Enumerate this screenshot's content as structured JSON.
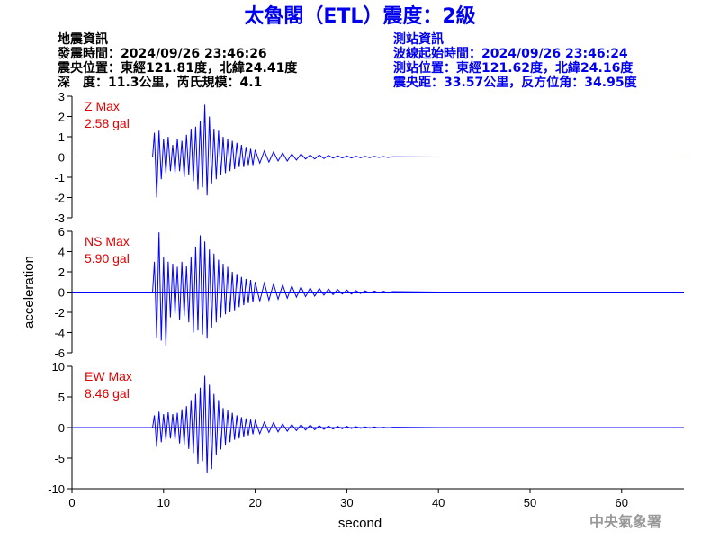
{
  "header": {
    "title": "太魯閣（ETL）震度：2級",
    "left": [
      "地震資訊",
      "發震時間：2024/09/26 23:46:26",
      "震央位置：東經121.81度，北緯24.41度",
      "深　度：11.3公里，芮氏規模：4.1"
    ],
    "right": [
      "測站資訊",
      "波線起始時間：2024/09/26 23:46:24",
      "測站位置：東經121.62度，北緯24.16度",
      "震央距：33.57公里，反方位角：34.95度"
    ]
  },
  "footer": "中央氣象署",
  "chart_data": [
    {
      "type": "line",
      "label": "Z Max",
      "max_label": "2.58 gal",
      "color": "#0000ff",
      "label_color": "#e00000",
      "xlim": [
        0,
        66.8
      ],
      "ylim": [
        -3,
        3
      ],
      "yticks": [
        3,
        2,
        1,
        0,
        -1,
        -2,
        -3
      ],
      "x": [
        0,
        8.8,
        9,
        9.25,
        9.5,
        9.75,
        10,
        10.25,
        10.5,
        10.75,
        11,
        11.25,
        11.5,
        11.75,
        12,
        12.25,
        12.5,
        12.75,
        13,
        13.25,
        13.5,
        13.75,
        14,
        14.25,
        14.5,
        14.75,
        15,
        15.25,
        15.5,
        15.75,
        16,
        16.25,
        16.5,
        16.75,
        17,
        17.25,
        17.5,
        17.75,
        18,
        18.25,
        18.5,
        18.75,
        19,
        19.25,
        19.5,
        19.75,
        20,
        20.5,
        21,
        21.5,
        22,
        22.5,
        23,
        23.5,
        24,
        24.5,
        25,
        25.5,
        26,
        26.5,
        27,
        27.5,
        28,
        28.5,
        29,
        29.5,
        30,
        30.5,
        31,
        31.5,
        32,
        32.5,
        33,
        33.5,
        34,
        34.5,
        35,
        40,
        66.8
      ],
      "values": [
        0,
        0,
        1.2,
        -2.0,
        1.3,
        -1.1,
        0.9,
        -0.8,
        1.0,
        -0.7,
        0.6,
        -0.8,
        0.9,
        -0.7,
        0.8,
        -1.0,
        1.1,
        -0.9,
        1.4,
        -1.2,
        1.5,
        -1.6,
        1.8,
        -1.5,
        2.58,
        -1.9,
        2.0,
        -1.3,
        1.4,
        -1.1,
        1.3,
        -0.9,
        1.0,
        -0.8,
        0.9,
        -0.7,
        0.8,
        -0.6,
        0.7,
        -0.5,
        0.6,
        -0.5,
        0.5,
        -0.4,
        0.4,
        -0.4,
        0.35,
        -0.3,
        0.3,
        -0.25,
        0.25,
        -0.2,
        0.2,
        -0.2,
        0.15,
        -0.15,
        0.15,
        -0.1,
        0.1,
        -0.1,
        0.1,
        -0.08,
        0.08,
        -0.06,
        0.06,
        -0.05,
        0.05,
        -0.05,
        0.04,
        -0.04,
        0.03,
        -0.03,
        0.03,
        -0.02,
        0.02,
        -0.02,
        0.01,
        0,
        0
      ]
    },
    {
      "type": "line",
      "label": "NS Max",
      "max_label": "5.90 gal",
      "color": "#0000ff",
      "label_color": "#e00000",
      "ylabel": "acceleration",
      "xlim": [
        0,
        66.8
      ],
      "ylim": [
        -6,
        6
      ],
      "yticks": [
        6,
        4,
        2,
        0,
        -2,
        -4,
        -6
      ],
      "x": [
        0,
        8.8,
        9,
        9.25,
        9.5,
        9.75,
        10,
        10.25,
        10.5,
        10.75,
        11,
        11.25,
        11.5,
        11.75,
        12,
        12.25,
        12.5,
        12.75,
        13,
        13.25,
        13.5,
        13.75,
        14,
        14.25,
        14.5,
        14.75,
        15,
        15.25,
        15.5,
        15.75,
        16,
        16.25,
        16.5,
        16.75,
        17,
        17.25,
        17.5,
        17.75,
        18,
        18.25,
        18.5,
        18.75,
        19,
        19.25,
        19.5,
        19.75,
        20,
        20.5,
        21,
        21.5,
        22,
        22.5,
        23,
        23.5,
        24,
        24.5,
        25,
        25.5,
        26,
        26.5,
        27,
        27.5,
        28,
        28.5,
        29,
        29.5,
        30,
        30.5,
        31,
        31.5,
        32,
        32.5,
        33,
        33.5,
        34,
        34.5,
        35,
        40,
        66.8
      ],
      "values": [
        0,
        0,
        3.0,
        -4.5,
        5.9,
        -4.8,
        3.5,
        -5.3,
        3.0,
        -2.5,
        2.8,
        -2.2,
        2.5,
        -2.8,
        3.0,
        -2.4,
        2.6,
        -3.0,
        3.5,
        -4.0,
        4.5,
        -3.8,
        5.6,
        -4.2,
        5.0,
        -4.6,
        4.2,
        -3.5,
        3.8,
        -3.0,
        3.2,
        -2.5,
        2.8,
        -2.2,
        2.5,
        -2.0,
        2.0,
        -1.8,
        1.8,
        -1.5,
        1.5,
        -1.3,
        1.3,
        -1.1,
        1.2,
        -1.0,
        1.0,
        -0.9,
        0.9,
        -0.8,
        0.8,
        -0.7,
        0.7,
        -0.6,
        0.6,
        -0.5,
        0.5,
        -0.45,
        0.4,
        -0.4,
        0.35,
        -0.3,
        0.3,
        -0.25,
        0.25,
        -0.2,
        0.2,
        -0.2,
        0.15,
        -0.15,
        0.12,
        -0.1,
        0.1,
        -0.08,
        0.08,
        -0.06,
        0.05,
        0,
        0
      ]
    },
    {
      "type": "line",
      "label": "EW Max",
      "max_label": "8.46 gal",
      "color": "#0000ff",
      "label_color": "#e00000",
      "xlabel": "second",
      "xlim": [
        0,
        66.8
      ],
      "xticks": [
        0,
        10,
        20,
        30,
        40,
        50,
        60
      ],
      "ylim": [
        -10,
        10
      ],
      "yticks": [
        10,
        5,
        0,
        -5,
        -10
      ],
      "x": [
        0,
        8.8,
        9,
        9.25,
        9.5,
        9.75,
        10,
        10.25,
        10.5,
        10.75,
        11,
        11.25,
        11.5,
        11.75,
        12,
        12.25,
        12.5,
        12.75,
        13,
        13.25,
        13.5,
        13.75,
        14,
        14.25,
        14.5,
        14.75,
        15,
        15.25,
        15.5,
        15.75,
        16,
        16.25,
        16.5,
        16.75,
        17,
        17.25,
        17.5,
        17.75,
        18,
        18.25,
        18.5,
        18.75,
        19,
        19.25,
        19.5,
        19.75,
        20,
        20.5,
        21,
        21.5,
        22,
        22.5,
        23,
        23.5,
        24,
        24.5,
        25,
        25.5,
        26,
        26.5,
        27,
        27.5,
        28,
        28.5,
        29,
        29.5,
        30,
        30.5,
        31,
        31.5,
        32,
        32.5,
        33,
        33.5,
        34,
        34.5,
        35,
        40,
        66.8
      ],
      "values": [
        0,
        0,
        2.0,
        -3.2,
        2.6,
        -2.4,
        2.2,
        -2.0,
        2.5,
        -1.8,
        2.2,
        -2.0,
        2.4,
        -2.6,
        3.0,
        -2.8,
        3.5,
        -3.5,
        4.5,
        -4.2,
        5.5,
        -6.0,
        6.5,
        -5.5,
        8.46,
        -7.5,
        7.0,
        -6.8,
        5.5,
        -4.5,
        4.5,
        -3.6,
        3.2,
        -2.8,
        2.8,
        -2.4,
        2.4,
        -2.0,
        2.0,
        -1.8,
        1.7,
        -1.5,
        1.5,
        -1.3,
        1.3,
        -1.1,
        1.1,
        -1.0,
        0.9,
        -0.8,
        0.8,
        -0.7,
        0.6,
        -0.6,
        0.5,
        -0.5,
        0.45,
        -0.4,
        0.4,
        -0.35,
        0.3,
        -0.3,
        0.25,
        -0.25,
        0.2,
        -0.2,
        0.2,
        -0.15,
        0.15,
        -0.12,
        0.1,
        -0.1,
        0.1,
        -0.08,
        0.06,
        -0.05,
        0.05,
        0,
        0
      ]
    }
  ]
}
